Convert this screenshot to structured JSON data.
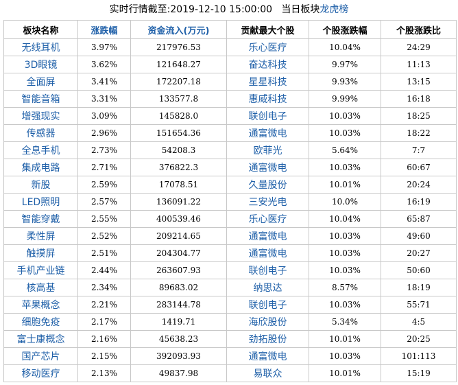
{
  "header": {
    "title": "实时行情截至:2019-12-10 15:00:00   当日板块",
    "title_highlight": "龙虎榜"
  },
  "table": {
    "columns": [
      "板块名称",
      "涨跌幅",
      "资金流入(万元)",
      "贡献最大个股",
      "个股涨跌幅",
      "个股涨跌比"
    ],
    "rows": [
      [
        "无线耳机",
        "3.97%",
        "217976.53",
        "乐心医疗",
        "10.04%",
        "24:29"
      ],
      [
        "3D眼镜",
        "3.62%",
        "121648.27",
        "奋达科技",
        "9.97%",
        "11:13"
      ],
      [
        "全面屏",
        "3.41%",
        "172207.18",
        "星星科技",
        "9.93%",
        "13:15"
      ],
      [
        "智能音箱",
        "3.31%",
        "133577.8",
        "惠威科技",
        "9.99%",
        "16:18"
      ],
      [
        "增强现实",
        "3.09%",
        "145828.0",
        "联创电子",
        "10.03%",
        "18:25"
      ],
      [
        "传感器",
        "2.96%",
        "151654.36",
        "通富微电",
        "10.03%",
        "18:22"
      ],
      [
        "全息手机",
        "2.73%",
        "54208.3",
        "欧菲光",
        "5.64%",
        "7:7"
      ],
      [
        "集成电路",
        "2.71%",
        "376822.3",
        "通富微电",
        "10.03%",
        "60:67"
      ],
      [
        "新股",
        "2.59%",
        "17078.51",
        "久量股份",
        "10.01%",
        "20:24"
      ],
      [
        "LED照明",
        "2.57%",
        "136091.22",
        "三安光电",
        "10.0%",
        "16:19"
      ],
      [
        "智能穿戴",
        "2.55%",
        "400539.46",
        "乐心医疗",
        "10.04%",
        "65:87"
      ],
      [
        "柔性屏",
        "2.52%",
        "209214.65",
        "通富微电",
        "10.03%",
        "49:60"
      ],
      [
        "触摸屏",
        "2.51%",
        "204304.77",
        "通富微电",
        "10.03%",
        "20:27"
      ],
      [
        "手机产业链",
        "2.44%",
        "263607.93",
        "联创电子",
        "10.03%",
        "50:60"
      ],
      [
        "核高基",
        "2.34%",
        "89683.02",
        "纳思达",
        "8.57%",
        "18:19"
      ],
      [
        "苹果概念",
        "2.21%",
        "283144.78",
        "联创电子",
        "10.03%",
        "55:71"
      ],
      [
        "细胞免疫",
        "2.17%",
        "1419.71",
        "海欣股份",
        "5.34%",
        "4:5"
      ],
      [
        "富士康概念",
        "2.16%",
        "45638.23",
        "劲拓股份",
        "10.01%",
        "20:25"
      ],
      [
        "国产芯片",
        "2.15%",
        "392093.93",
        "通富微电",
        "10.03%",
        "101:113"
      ],
      [
        "移动医疗",
        "2.13%",
        "49837.98",
        "易联众",
        "10.01%",
        "15:19"
      ]
    ]
  }
}
